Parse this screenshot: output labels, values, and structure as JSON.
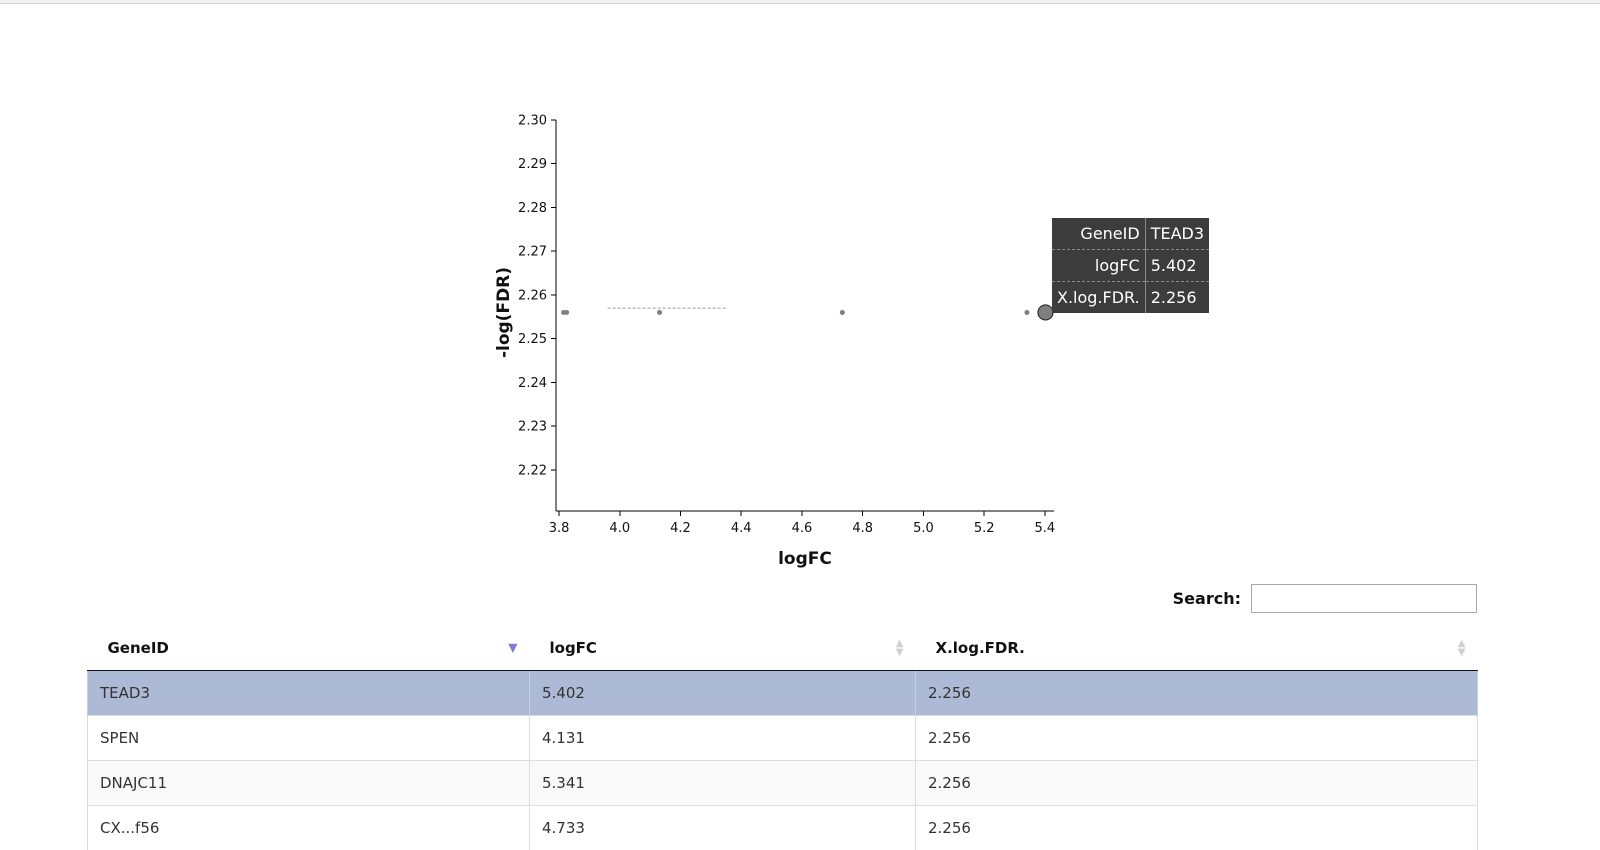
{
  "chart_data": {
    "type": "scatter",
    "xlabel": "logFC",
    "ylabel": "-log(FDR)",
    "xlim": [
      3.79,
      5.43
    ],
    "ylim": [
      2.2106,
      2.3
    ],
    "xticks": [
      "3.8",
      "4.0",
      "4.2",
      "4.4",
      "4.6",
      "4.8",
      "5.0",
      "5.2",
      "5.4"
    ],
    "yticks": [
      "2.22",
      "2.23",
      "2.24",
      "2.25",
      "2.26",
      "2.27",
      "2.28",
      "2.29",
      "2.30"
    ],
    "points": [
      {
        "x": 3.815,
        "y": 2.256
      },
      {
        "x": 3.825,
        "y": 2.256
      },
      {
        "x": 4.131,
        "y": 2.256
      },
      {
        "x": 4.733,
        "y": 2.256
      },
      {
        "x": 5.341,
        "y": 2.256
      },
      {
        "x": 5.402,
        "y": 2.256,
        "highlighted": true
      }
    ],
    "dashed_segment": {
      "x": [
        3.96,
        4.35
      ],
      "y": 2.257
    },
    "point_color": "#808080"
  },
  "tooltip": {
    "rows": [
      {
        "key": "GeneID",
        "value": "TEAD3"
      },
      {
        "key": "logFC",
        "value": "5.402"
      },
      {
        "key": "X.log.FDR.",
        "value": "2.256"
      }
    ]
  },
  "search": {
    "label": "Search:",
    "value": ""
  },
  "table": {
    "columns": [
      "GeneID",
      "logFC",
      "X.log.FDR."
    ],
    "rows": [
      [
        "TEAD3",
        "5.402",
        "2.256"
      ],
      [
        "SPEN",
        "4.131",
        "2.256"
      ],
      [
        "DNAJC11",
        "5.341",
        "2.256"
      ],
      [
        "CX...f56",
        "4.733",
        "2.256"
      ]
    ],
    "selected_row": 0,
    "selected_color": "#acbad6",
    "sort_active_color": "#7a7fd6"
  }
}
